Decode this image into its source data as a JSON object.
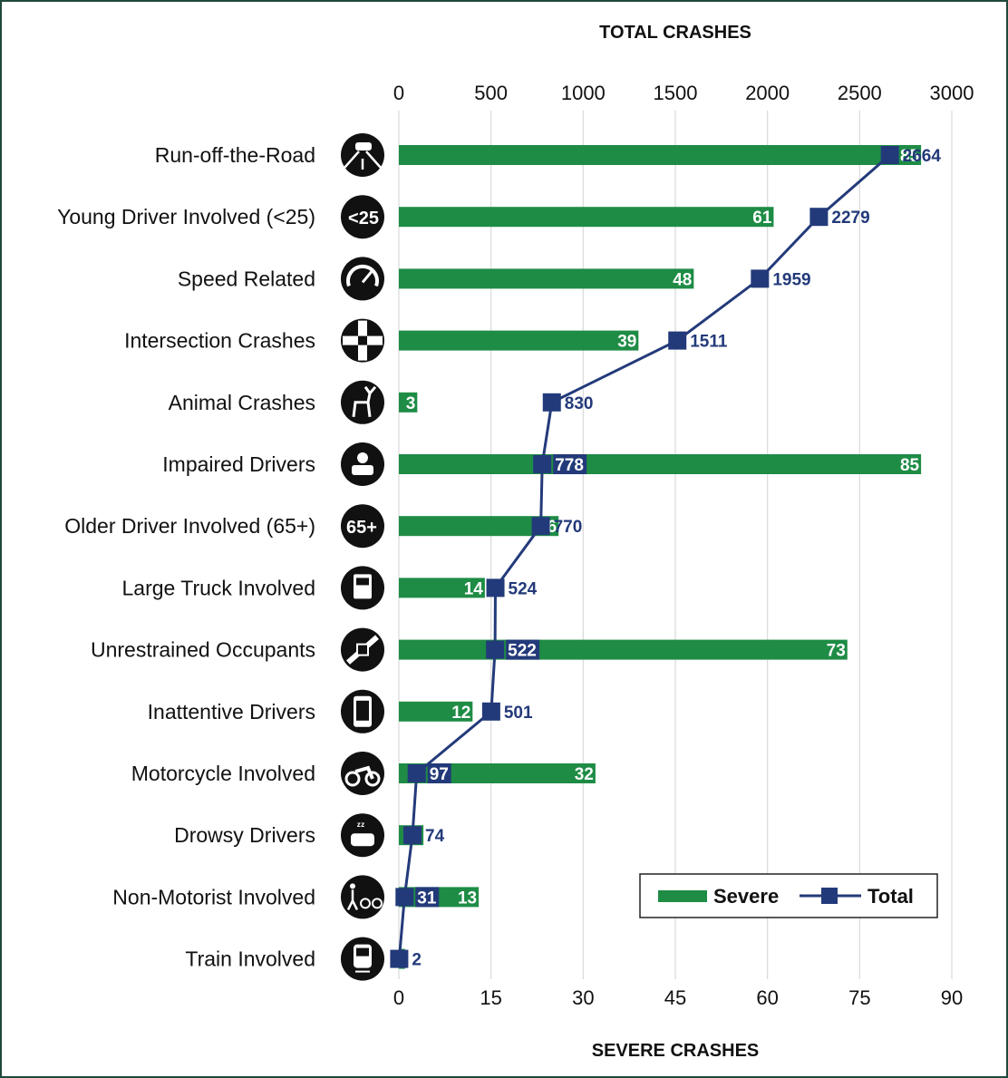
{
  "chart_data": {
    "type": "bar",
    "title_top": "TOTAL CRASHES",
    "title_bottom": "SEVERE CRASHES",
    "categories": [
      "Run-off-the-Road",
      "Young Driver Involved (<25)",
      "Speed Related",
      "Intersection Crashes",
      "Animal Crashes",
      "Impaired Drivers",
      "Older Driver Involved (65+)",
      "Large Truck Involved",
      "Unrestrained Occupants",
      "Inattentive Drivers",
      "Motorcycle Involved",
      "Drowsy Drivers",
      "Non-Motorist Involved",
      "Train Involved"
    ],
    "icons": [
      "road-car-icon",
      "young-driver-icon",
      "speedometer-icon",
      "intersection-icon",
      "deer-icon",
      "impaired-driver-icon",
      "older-driver-icon",
      "truck-icon",
      "seatbelt-icon",
      "phone-icon",
      "motorcycle-icon",
      "drowsy-icon",
      "pedestrian-bicycle-icon",
      "train-icon"
    ],
    "young_icon_text": "<25",
    "older_icon_text": "65+",
    "series": [
      {
        "name": "Severe",
        "axis": "bottom",
        "values": [
          85,
          61,
          48,
          39,
          3,
          85,
          26,
          14,
          73,
          12,
          32,
          4,
          13,
          1
        ],
        "labels": [
          "85",
          "61",
          "48",
          "39",
          "3",
          "85",
          "26",
          "14",
          "73",
          "12",
          "32",
          "4",
          "13",
          "1"
        ]
      },
      {
        "name": "Total",
        "axis": "top",
        "values": [
          2664,
          2279,
          1959,
          1511,
          830,
          778,
          770,
          524,
          522,
          501,
          97,
          74,
          31,
          2
        ],
        "labels": [
          "2664",
          "2279",
          "1959",
          "1511",
          "830",
          "778",
          "770",
          "524",
          "522",
          "501",
          "97",
          "74",
          "31",
          "2"
        ]
      }
    ],
    "top_axis": {
      "range": [
        0,
        3000
      ],
      "ticks": [
        "0",
        "500",
        "1000",
        "1500",
        "2000",
        "2500",
        "3000"
      ]
    },
    "bottom_axis": {
      "range": [
        0,
        90
      ],
      "ticks": [
        "0",
        "15",
        "30",
        "45",
        "60",
        "75",
        "90"
      ]
    },
    "grid": "vertical",
    "legend": {
      "position": "bottom-right",
      "entries": [
        "Severe",
        "Total"
      ]
    },
    "colors": {
      "severe": "#1e8c45",
      "total": "#233a7a",
      "grid": "#d9d9d9",
      "frame": "#1f4a3a"
    }
  }
}
